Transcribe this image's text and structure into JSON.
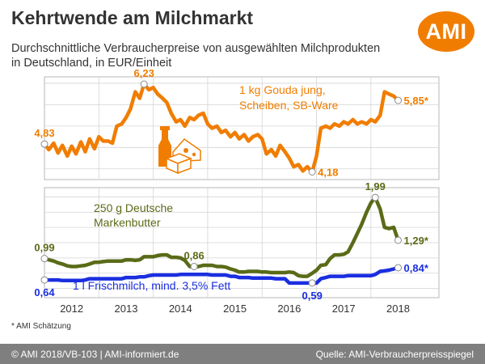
{
  "header": {
    "title": "Kehrtwende am Milchmarkt",
    "subtitle_line1": "Durchschnittliche Verbraucherpreise von ausgewählten Milchprodukten",
    "subtitle_line2": "in Deutschland, in EUR/Einheit",
    "logo_text": "AMI"
  },
  "note": "* AMI Schätzung",
  "footer": {
    "left": "© AMI 2018/VB-103 | AMI-informiert.de",
    "right": "Quelle: AMI-Verbraucherpreisspiegel"
  },
  "colors": {
    "gouda": "#f07d00",
    "butter": "#5a6b18",
    "milk": "#1a2ee0",
    "brand": "#f07d00",
    "footer_bg": "#7f7f7f"
  },
  "icons": [
    "milk-bottle-icon",
    "cheese-icon",
    "butter-block-icon"
  ],
  "chart_data": {
    "type": "line",
    "x_axis": {
      "ticks": [
        "2012",
        "2013",
        "2014",
        "2015",
        "2016",
        "2017",
        "2018"
      ],
      "range": [
        2011.5,
        2018.75
      ]
    },
    "grid": true,
    "panels": [
      {
        "series": [
          {
            "name": "1 kg Gouda jung, Scheiben, SB-Ware",
            "name_lines": [
              "1 kg Gouda jung,",
              "Scheiben, SB-Ware"
            ],
            "color": "#f07d00",
            "x": [
              2011.5,
              2011.58,
              2011.67,
              2011.75,
              2011.83,
              2011.92,
              2012.0,
              2012.08,
              2012.17,
              2012.25,
              2012.33,
              2012.42,
              2012.5,
              2012.58,
              2012.67,
              2012.75,
              2012.83,
              2012.92,
              2013.0,
              2013.08,
              2013.17,
              2013.25,
              2013.33,
              2013.42,
              2013.5,
              2013.58,
              2013.67,
              2013.75,
              2013.83,
              2013.92,
              2014.0,
              2014.08,
              2014.17,
              2014.25,
              2014.33,
              2014.42,
              2014.5,
              2014.58,
              2014.67,
              2014.75,
              2014.83,
              2014.92,
              2015.0,
              2015.08,
              2015.17,
              2015.25,
              2015.33,
              2015.42,
              2015.5,
              2015.58,
              2015.67,
              2015.75,
              2015.83,
              2015.92,
              2016.0,
              2016.08,
              2016.17,
              2016.25,
              2016.33,
              2016.42,
              2016.5,
              2016.58,
              2016.67,
              2016.75,
              2016.83,
              2016.92,
              2017.0,
              2017.08,
              2017.17,
              2017.25,
              2017.33,
              2017.42,
              2017.5,
              2017.58,
              2017.67,
              2017.75,
              2017.83,
              2017.92,
              2018.0
            ],
            "y": [
              4.83,
              4.7,
              4.85,
              4.62,
              4.8,
              4.55,
              4.78,
              4.6,
              4.88,
              4.65,
              4.95,
              4.72,
              5.0,
              4.9,
              4.9,
              4.85,
              5.25,
              5.3,
              5.45,
              5.65,
              6.05,
              5.9,
              6.23,
              6.1,
              6.15,
              6.0,
              5.9,
              5.8,
              5.55,
              5.35,
              5.4,
              5.25,
              5.45,
              5.4,
              5.5,
              5.55,
              5.3,
              5.2,
              5.25,
              5.1,
              5.15,
              5.0,
              5.1,
              4.95,
              5.05,
              4.9,
              5.0,
              5.05,
              4.95,
              4.6,
              4.7,
              4.55,
              4.8,
              4.65,
              4.5,
              4.3,
              4.35,
              4.2,
              4.3,
              4.18,
              4.55,
              5.2,
              5.25,
              5.2,
              5.3,
              5.25,
              5.35,
              5.3,
              5.4,
              5.3,
              5.35,
              5.3,
              5.4,
              5.35,
              5.5,
              6.05,
              6.0,
              5.95,
              5.85
            ],
            "point_labels": [
              {
                "index": 0,
                "text": "4,83",
                "pos": "above"
              },
              {
                "index": 22,
                "text": "6,23",
                "pos": "above"
              },
              {
                "index": 59,
                "text": "4,18",
                "pos": "right"
              },
              {
                "index": 78,
                "text": "5,85*",
                "pos": "right"
              }
            ]
          }
        ]
      },
      {
        "series": [
          {
            "name": "250 g Deutsche Markenbutter",
            "name_lines": [
              "250 g Deutsche",
              "Markenbutter"
            ],
            "color": "#5a6b18",
            "x": [
              2011.5,
              2011.58,
              2011.67,
              2011.75,
              2011.83,
              2011.92,
              2012.0,
              2012.08,
              2012.17,
              2012.25,
              2012.33,
              2012.42,
              2012.5,
              2012.58,
              2012.67,
              2012.75,
              2012.83,
              2012.92,
              2013.0,
              2013.08,
              2013.17,
              2013.25,
              2013.33,
              2013.42,
              2013.5,
              2013.58,
              2013.67,
              2013.75,
              2013.83,
              2013.92,
              2014.0,
              2014.08,
              2014.17,
              2014.25,
              2014.33,
              2014.42,
              2014.5,
              2014.58,
              2014.67,
              2014.75,
              2014.83,
              2014.92,
              2015.0,
              2015.08,
              2015.17,
              2015.25,
              2015.33,
              2015.42,
              2015.5,
              2015.58,
              2015.67,
              2015.75,
              2015.83,
              2015.92,
              2016.0,
              2016.08,
              2016.17,
              2016.25,
              2016.33,
              2016.42,
              2016.5,
              2016.58,
              2016.67,
              2016.75,
              2016.83,
              2016.92,
              2017.0,
              2017.08,
              2017.17,
              2017.25,
              2017.33,
              2017.42,
              2017.5,
              2017.58,
              2017.67,
              2017.75,
              2017.83,
              2017.92,
              2018.0
            ],
            "y": [
              0.99,
              0.97,
              0.95,
              0.92,
              0.9,
              0.87,
              0.86,
              0.86,
              0.87,
              0.88,
              0.9,
              0.93,
              0.93,
              0.94,
              0.95,
              0.95,
              0.95,
              0.95,
              0.97,
              0.97,
              0.96,
              0.97,
              1.02,
              1.02,
              1.02,
              1.04,
              1.05,
              1.05,
              1.01,
              1.01,
              1.0,
              0.96,
              0.86,
              0.86,
              0.86,
              0.88,
              0.88,
              0.88,
              0.86,
              0.86,
              0.85,
              0.82,
              0.8,
              0.77,
              0.77,
              0.78,
              0.78,
              0.78,
              0.77,
              0.77,
              0.76,
              0.76,
              0.76,
              0.76,
              0.77,
              0.76,
              0.71,
              0.7,
              0.7,
              0.75,
              0.8,
              0.88,
              0.89,
              0.99,
              1.05,
              1.05,
              1.06,
              1.1,
              1.25,
              1.4,
              1.55,
              1.75,
              1.9,
              1.99,
              1.8,
              1.5,
              1.48,
              1.5,
              1.29
            ],
            "point_labels": [
              {
                "index": 0,
                "text": "0,99",
                "pos": "above"
              },
              {
                "index": 33,
                "text": "0,86",
                "pos": "above"
              },
              {
                "index": 73,
                "text": "1,99",
                "pos": "above"
              },
              {
                "index": 78,
                "text": "1,29*",
                "pos": "right"
              }
            ]
          },
          {
            "name": "1 l Frischmilch, mind. 3,5% Fett",
            "color": "#1a2ee0",
            "x": [
              2011.5,
              2011.58,
              2011.67,
              2011.75,
              2011.83,
              2011.92,
              2012.0,
              2012.08,
              2012.17,
              2012.25,
              2012.33,
              2012.42,
              2012.5,
              2012.58,
              2012.67,
              2012.75,
              2012.83,
              2012.92,
              2013.0,
              2013.08,
              2013.17,
              2013.25,
              2013.33,
              2013.42,
              2013.5,
              2013.58,
              2013.67,
              2013.75,
              2013.83,
              2013.92,
              2014.0,
              2014.08,
              2014.17,
              2014.25,
              2014.33,
              2014.42,
              2014.5,
              2014.58,
              2014.67,
              2014.75,
              2014.83,
              2014.92,
              2015.0,
              2015.08,
              2015.17,
              2015.25,
              2015.33,
              2015.42,
              2015.5,
              2015.58,
              2015.67,
              2015.75,
              2015.83,
              2015.92,
              2016.0,
              2016.08,
              2016.17,
              2016.25,
              2016.33,
              2016.42,
              2016.5,
              2016.58,
              2016.67,
              2016.75,
              2016.83,
              2016.92,
              2017.0,
              2017.08,
              2017.17,
              2017.25,
              2017.33,
              2017.42,
              2017.5,
              2017.58,
              2017.67,
              2017.75,
              2017.83,
              2017.92,
              2018.0
            ],
            "y": [
              0.64,
              0.64,
              0.64,
              0.64,
              0.63,
              0.63,
              0.63,
              0.63,
              0.63,
              0.64,
              0.66,
              0.66,
              0.66,
              0.66,
              0.66,
              0.66,
              0.66,
              0.66,
              0.68,
              0.68,
              0.68,
              0.69,
              0.69,
              0.71,
              0.72,
              0.72,
              0.72,
              0.72,
              0.72,
              0.72,
              0.73,
              0.73,
              0.73,
              0.73,
              0.73,
              0.73,
              0.73,
              0.72,
              0.72,
              0.72,
              0.72,
              0.7,
              0.7,
              0.68,
              0.68,
              0.68,
              0.67,
              0.67,
              0.67,
              0.67,
              0.67,
              0.66,
              0.66,
              0.66,
              0.59,
              0.59,
              0.59,
              0.59,
              0.59,
              0.59,
              0.59,
              0.66,
              0.68,
              0.7,
              0.7,
              0.7,
              0.7,
              0.71,
              0.71,
              0.71,
              0.71,
              0.71,
              0.71,
              0.73,
              0.78,
              0.79,
              0.8,
              0.82,
              0.84
            ],
            "point_labels": [
              {
                "index": 0,
                "text": "0,64",
                "pos": "below"
              },
              {
                "index": 59,
                "text": "0,59",
                "pos": "below"
              },
              {
                "index": 78,
                "text": "0,84*",
                "pos": "right"
              }
            ]
          }
        ]
      }
    ]
  }
}
